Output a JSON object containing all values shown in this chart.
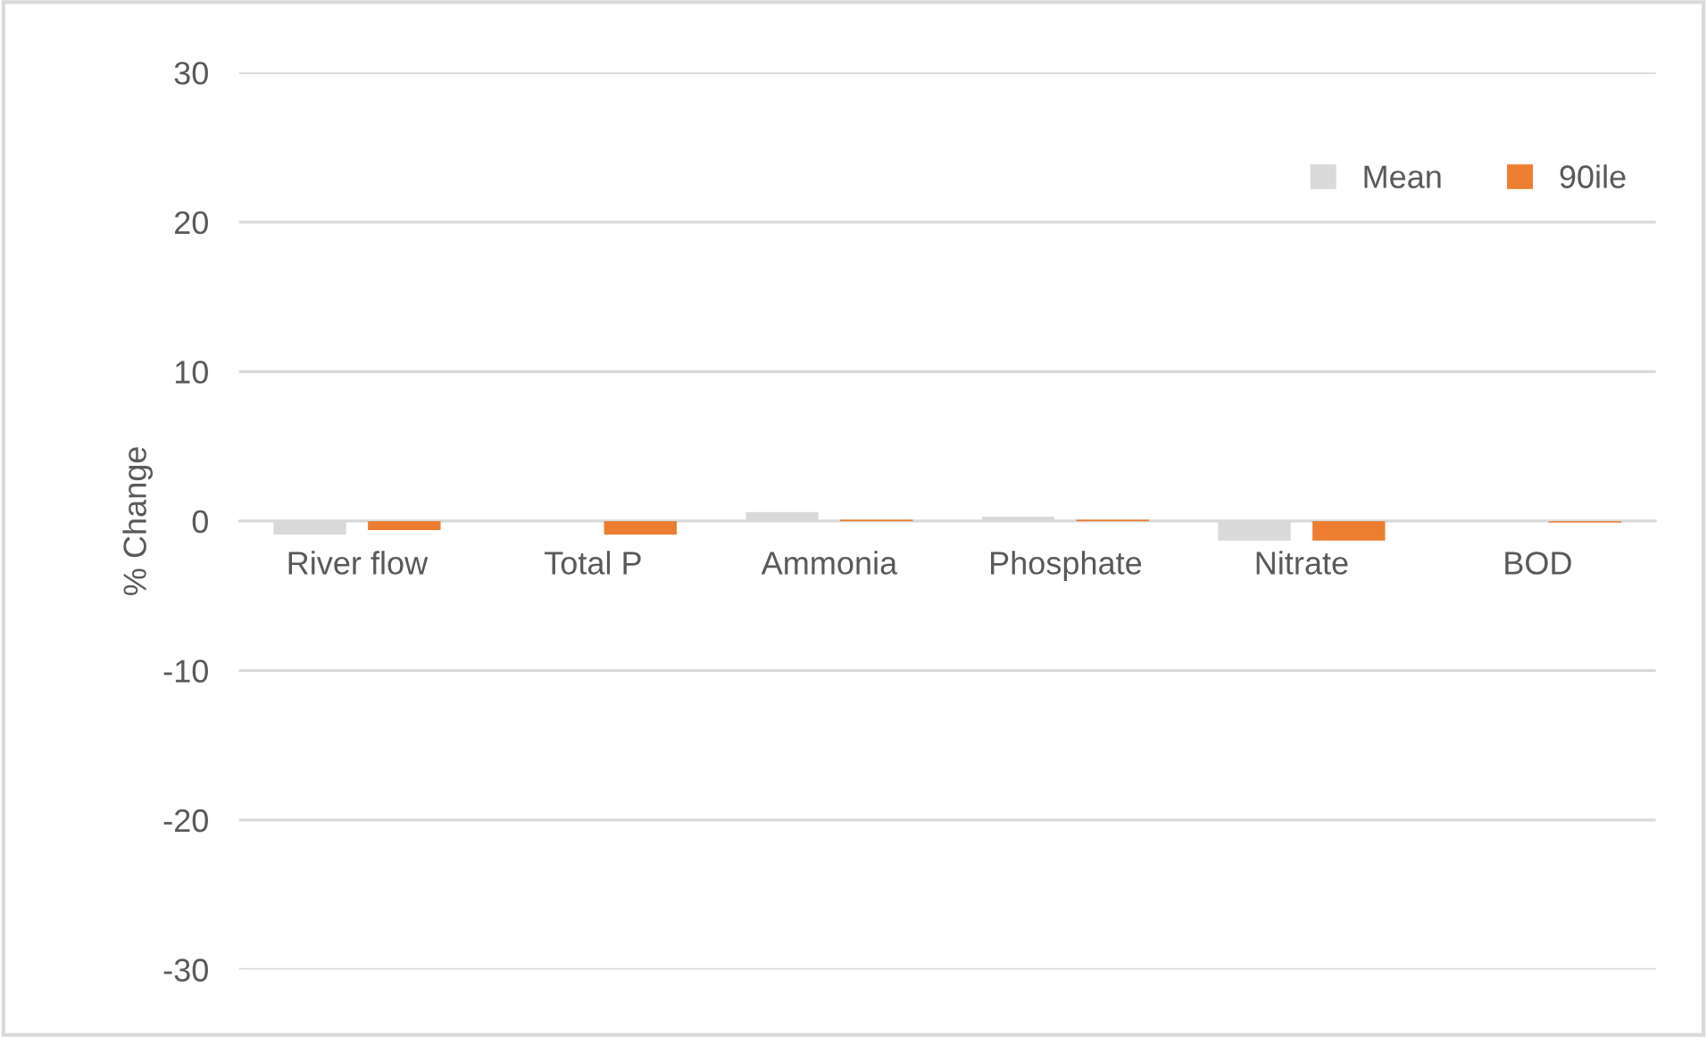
{
  "chart_data": {
    "type": "bar",
    "ylabel": "% Change",
    "categories": [
      "River flow",
      "Total P",
      "Ammonia",
      "Phosphate",
      "Nitrate",
      "BOD"
    ],
    "series": [
      {
        "name": "Mean",
        "color": "#d9d9d9",
        "values": [
          -0.9,
          0,
          0.6,
          0.3,
          -1.3,
          0
        ]
      },
      {
        "name": "90ile",
        "color": "#ed7d31",
        "values": [
          -0.6,
          -0.9,
          0.1,
          0.1,
          -1.3,
          -0.1
        ]
      }
    ],
    "ylim": [
      -30,
      30
    ],
    "yticks": [
      -30,
      -20,
      -10,
      0,
      10,
      20,
      30
    ],
    "grid": "y",
    "legend": "top right"
  }
}
